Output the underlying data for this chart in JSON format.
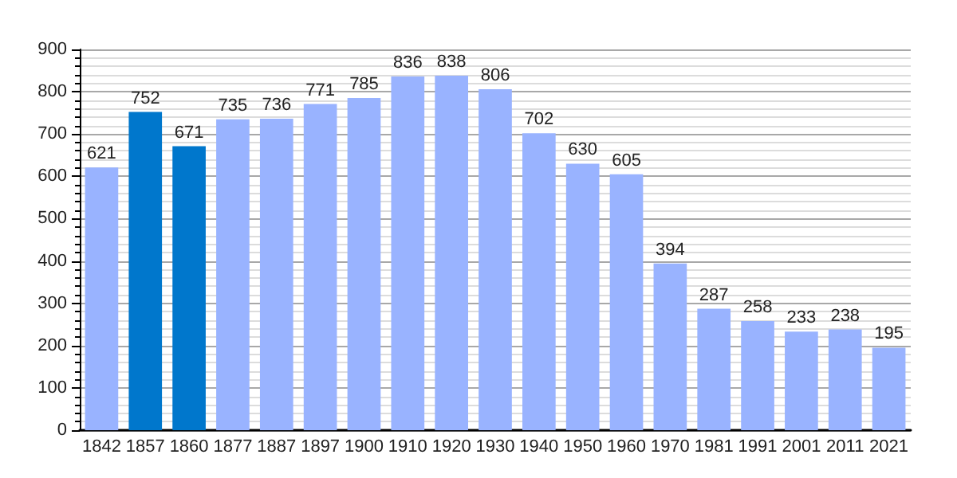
{
  "chart_data": {
    "type": "bar",
    "categories": [
      "1842",
      "1857",
      "1860",
      "1877",
      "1887",
      "1897",
      "1900",
      "1910",
      "1920",
      "1930",
      "1940",
      "1950",
      "1960",
      "1970",
      "1981",
      "1991",
      "2001",
      "2011",
      "2021"
    ],
    "values": [
      621,
      752,
      671,
      735,
      736,
      771,
      785,
      836,
      838,
      806,
      702,
      630,
      605,
      394,
      287,
      258,
      233,
      238,
      195
    ],
    "colors": [
      "#99b3ff",
      "#0077cc",
      "#0077cc",
      "#99b3ff",
      "#99b3ff",
      "#99b3ff",
      "#99b3ff",
      "#99b3ff",
      "#99b3ff",
      "#99b3ff",
      "#99b3ff",
      "#99b3ff",
      "#99b3ff",
      "#99b3ff",
      "#99b3ff",
      "#99b3ff",
      "#99b3ff",
      "#99b3ff",
      "#99b3ff"
    ],
    "ylim": [
      0,
      900
    ],
    "yticks": [
      0,
      {
        "value": 20,
        "label": null
      },
      {
        "value": 40,
        "label": null
      },
      {
        "value": 60,
        "label": null
      },
      {
        "value": 80,
        "label": null
      },
      100,
      {
        "value": 120,
        "label": null
      },
      {
        "value": 140,
        "label": null
      },
      {
        "value": 160,
        "label": null
      },
      {
        "value": 180,
        "label": null
      },
      200,
      {
        "value": 220,
        "label": null
      },
      {
        "value": 240,
        "label": null
      },
      {
        "value": 260,
        "label": null
      },
      {
        "value": 280,
        "label": null
      },
      300,
      {
        "value": 320,
        "label": null
      },
      {
        "value": 340,
        "label": null
      },
      {
        "value": 360,
        "label": null
      },
      {
        "value": 380,
        "label": null
      },
      400,
      {
        "value": 420,
        "label": null
      },
      {
        "value": 440,
        "label": null
      },
      {
        "value": 460,
        "label": null
      },
      {
        "value": 480,
        "label": null
      },
      500,
      {
        "value": 520,
        "label": null
      },
      {
        "value": 540,
        "label": null
      },
      {
        "value": 560,
        "label": null
      },
      {
        "value": 580,
        "label": null
      },
      600,
      {
        "value": 620,
        "label": null
      },
      {
        "value": 640,
        "label": null
      },
      {
        "value": 660,
        "label": null
      },
      {
        "value": 680,
        "label": null
      },
      700,
      {
        "value": 720,
        "label": null
      },
      {
        "value": 740,
        "label": null
      },
      {
        "value": 760,
        "label": null
      },
      {
        "value": 780,
        "label": null
      },
      800,
      {
        "value": 820,
        "label": null
      },
      {
        "value": 840,
        "label": null
      },
      {
        "value": 860,
        "label": null
      },
      {
        "value": 880,
        "label": null
      },
      900
    ],
    "grid": true,
    "data_labels": true
  }
}
